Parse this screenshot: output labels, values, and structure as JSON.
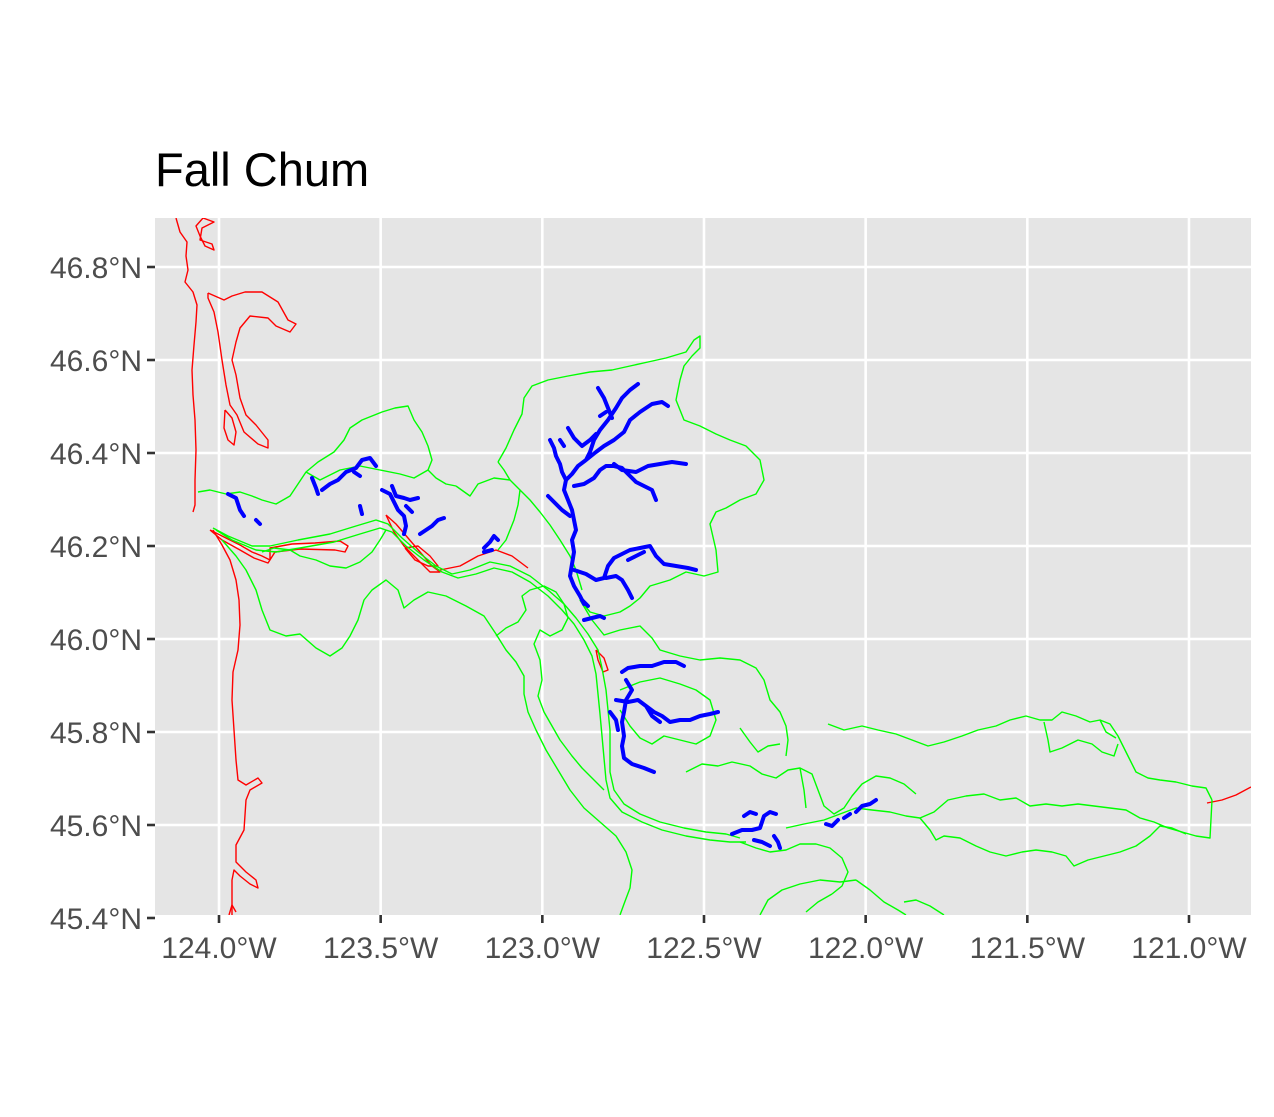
{
  "map": {
    "title": "Fall Chum",
    "colors": {
      "panel_background": "#e5e5e5",
      "gridline": "#ffffff",
      "coastline_and_river_outline": "#ff0000",
      "population_boundaries": "#00ff00",
      "spawning_streams": "#0000ff"
    },
    "x_axis": {
      "ticks": [
        {
          "value": -124.0,
          "label": "124.0°W"
        },
        {
          "value": -123.5,
          "label": "123.5°W"
        },
        {
          "value": -123.0,
          "label": "123.0°W"
        },
        {
          "value": -122.5,
          "label": "122.5°W"
        },
        {
          "value": -122.0,
          "label": "122.0°W"
        },
        {
          "value": -121.5,
          "label": "121.5°W"
        },
        {
          "value": -121.0,
          "label": "121.0°W"
        }
      ]
    },
    "y_axis": {
      "ticks": [
        {
          "value": 46.8,
          "label": "46.8°N"
        },
        {
          "value": 46.6,
          "label": "46.6°N"
        },
        {
          "value": 46.4,
          "label": "46.4°N"
        },
        {
          "value": 46.2,
          "label": "46.2°N"
        },
        {
          "value": 46.0,
          "label": "46.0°N"
        },
        {
          "value": 45.8,
          "label": "45.8°N"
        },
        {
          "value": 45.6,
          "label": "45.6°N"
        },
        {
          "value": 45.4,
          "label": "45.4°N"
        }
      ]
    },
    "extent": {
      "lon": [
        -124.2,
        -120.8
      ],
      "lat": [
        45.4,
        46.9
      ]
    }
  }
}
